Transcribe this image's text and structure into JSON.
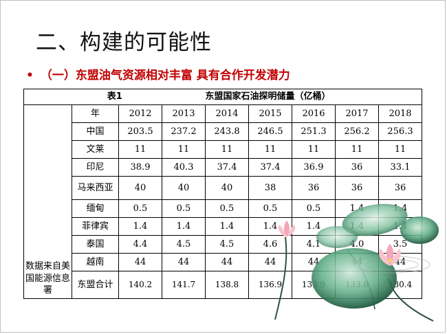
{
  "slide": {
    "title": "二、构建的可能性",
    "subtitle_bullet": "•",
    "subtitle": "（一）东盟油气资源相对丰富 具有合作开发潜力"
  },
  "table": {
    "caption_label": "表1",
    "caption_title": "东盟国家石油探明储量（亿桶）",
    "source_note": "数据来自美国能源信息署",
    "year_header": "年",
    "years": [
      "2012",
      "2013",
      "2014",
      "2015",
      "2016",
      "2017",
      "2018"
    ],
    "rows": [
      {
        "country": "中国",
        "values": [
          "203.5",
          "237.2",
          "243.8",
          "246.5",
          "251.3",
          "256.2",
          "256.3"
        ]
      },
      {
        "country": "文莱",
        "values": [
          "11",
          "11",
          "11",
          "11",
          "11",
          "11",
          "11"
        ]
      },
      {
        "country": "印尼",
        "values": [
          "38.9",
          "40.3",
          "37.4",
          "37.4",
          "36.9",
          "36",
          "33.1"
        ]
      },
      {
        "country": "马来西亚",
        "values": [
          "40",
          "40",
          "40",
          "38",
          "36",
          "36",
          "36"
        ]
      },
      {
        "country": "缅甸",
        "values": [
          "0.5",
          "0.5",
          "0.5",
          "0.5",
          "0.5",
          "1.4",
          "1.4"
        ]
      },
      {
        "country": "菲律宾",
        "values": [
          "1.4",
          "1.4",
          "1.4",
          "1.4",
          "1.4",
          "1.4",
          "1.4"
        ]
      },
      {
        "country": "泰国",
        "values": [
          "4.4",
          "4.5",
          "4.5",
          "4.6",
          "4.1",
          "4.0",
          "3.5"
        ]
      },
      {
        "country": "越南",
        "values": [
          "44",
          "44",
          "44",
          "44",
          "44",
          "44",
          "44"
        ]
      },
      {
        "country": "东盟合计",
        "values": [
          "140.2",
          "141.7",
          "138.8",
          "136.9",
          "133.9",
          "133.8",
          "130.4"
        ]
      }
    ]
  },
  "colors": {
    "subtitle": "#c00000",
    "lotus_pink": "#f4a6b8",
    "leaf_green": "#2f7d5a"
  }
}
